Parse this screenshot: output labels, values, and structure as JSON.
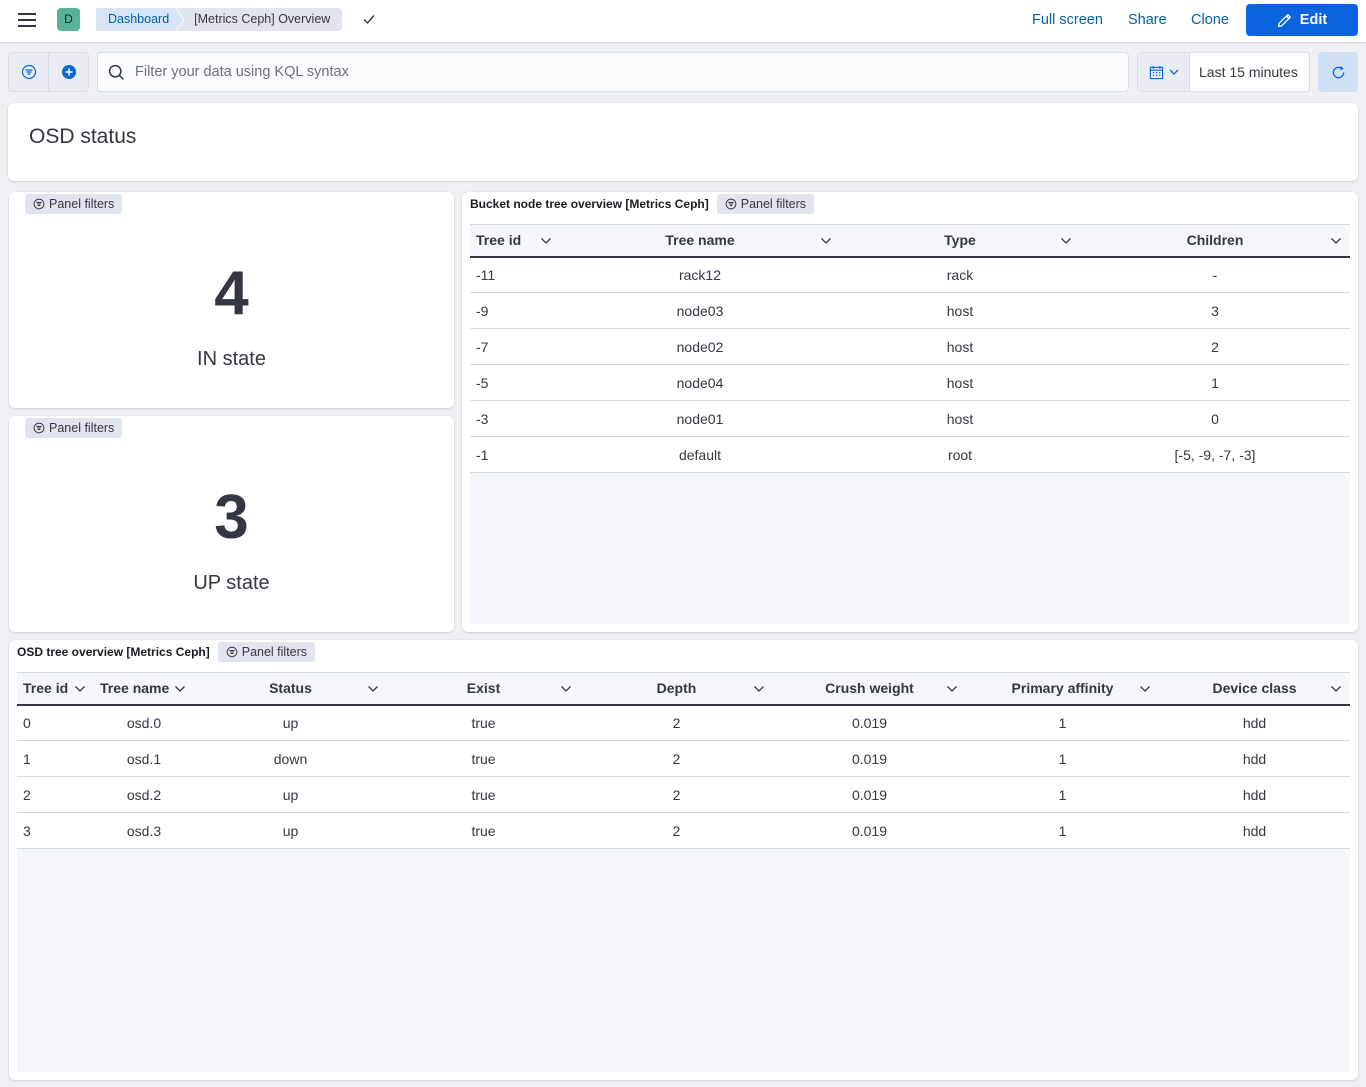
{
  "header": {
    "breadcrumbs": [
      "Dashboard",
      "[Metrics Ceph] Overview"
    ],
    "space_initial": "D",
    "actions": {
      "full_screen": "Full screen",
      "share": "Share",
      "clone": "Clone",
      "edit": "Edit"
    }
  },
  "query": {
    "placeholder": "Filter your data using KQL syntax",
    "time_range": "Last 15 minutes"
  },
  "markdown_panel": {
    "title": "OSD status"
  },
  "panel_filters_label": "Panel filters",
  "metric_in": {
    "value": "4",
    "label": "IN state"
  },
  "metric_up": {
    "value": "3",
    "label": "UP state"
  },
  "bucket_table": {
    "title": "Bucket node tree overview [Metrics Ceph]",
    "columns": [
      "Tree id",
      "Tree name",
      "Type",
      "Children"
    ],
    "rows": [
      [
        "-11",
        "rack12",
        "rack",
        "-"
      ],
      [
        "-9",
        "node03",
        "host",
        "3"
      ],
      [
        "-7",
        "node02",
        "host",
        "2"
      ],
      [
        "-5",
        "node04",
        "host",
        "1"
      ],
      [
        "-3",
        "node01",
        "host",
        "0"
      ],
      [
        "-1",
        "default",
        "root",
        "[-5, -9, -7, -3]"
      ]
    ]
  },
  "osd_table": {
    "title": "OSD tree overview [Metrics Ceph]",
    "columns": [
      "Tree id",
      "Tree name",
      "Status",
      "Exist",
      "Depth",
      "Crush weight",
      "Primary affinity",
      "Device class"
    ],
    "rows": [
      [
        "0",
        "osd.0",
        "up",
        "true",
        "2",
        "0.019",
        "1",
        "hdd"
      ],
      [
        "1",
        "osd.1",
        "down",
        "true",
        "2",
        "0.019",
        "1",
        "hdd"
      ],
      [
        "2",
        "osd.2",
        "up",
        "true",
        "2",
        "0.019",
        "1",
        "hdd"
      ],
      [
        "3",
        "osd.3",
        "up",
        "true",
        "2",
        "0.019",
        "1",
        "hdd"
      ]
    ]
  },
  "colors": {
    "primary": "#0b64dd",
    "link": "#0061a6",
    "avatar": "#54b399",
    "text": "#343741"
  },
  "icons": [
    "menu-icon",
    "check-icon",
    "pencil-icon",
    "filter-icon",
    "plus-circle-icon",
    "search-icon",
    "calendar-icon",
    "chevron-down-icon",
    "refresh-icon"
  ]
}
